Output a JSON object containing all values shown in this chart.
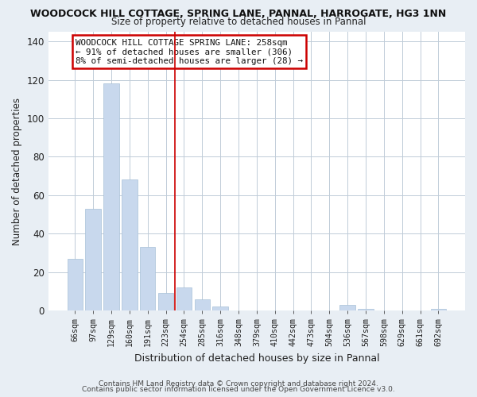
{
  "title": "WOODCOCK HILL COTTAGE, SPRING LANE, PANNAL, HARROGATE, HG3 1NN",
  "subtitle": "Size of property relative to detached houses in Pannal",
  "xlabel": "Distribution of detached houses by size in Pannal",
  "ylabel": "Number of detached properties",
  "bar_color": "#c8d8ed",
  "bar_edge_color": "#a8c0d8",
  "categories": [
    "66sqm",
    "97sqm",
    "129sqm",
    "160sqm",
    "191sqm",
    "223sqm",
    "254sqm",
    "285sqm",
    "316sqm",
    "348sqm",
    "379sqm",
    "410sqm",
    "442sqm",
    "473sqm",
    "504sqm",
    "536sqm",
    "567sqm",
    "598sqm",
    "629sqm",
    "661sqm",
    "692sqm"
  ],
  "values": [
    27,
    53,
    118,
    68,
    33,
    9,
    12,
    6,
    2,
    0,
    0,
    0,
    0,
    0,
    0,
    3,
    1,
    0,
    0,
    0,
    1
  ],
  "ylim": [
    0,
    145
  ],
  "yticks": [
    0,
    20,
    40,
    60,
    80,
    100,
    120,
    140
  ],
  "annotation_line1": "WOODCOCK HILL COTTAGE SPRING LANE: 258sqm",
  "annotation_line2": "← 91% of detached houses are smaller (306)",
  "annotation_line3": "8% of semi-detached houses are larger (28) →",
  "vline_color": "#cc0000",
  "vline_x_index": 5.5,
  "footer1": "Contains HM Land Registry data © Crown copyright and database right 2024.",
  "footer2": "Contains public sector information licensed under the Open Government Licence v3.0.",
  "bg_color": "#e8eef4",
  "plot_bg_color": "#ffffff",
  "grid_color": "#c0ccd8",
  "title_fontsize": 9,
  "subtitle_fontsize": 8.5
}
